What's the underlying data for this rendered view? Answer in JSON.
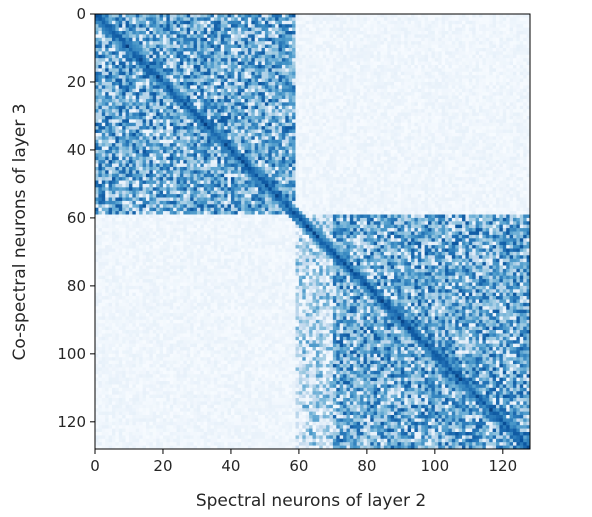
{
  "chart_data": {
    "type": "heatmap",
    "xlabel": "Spectral neurons of layer 2",
    "ylabel": "Co-spectral neurons of layer 3",
    "xlim": [
      0,
      128
    ],
    "ylim": [
      128,
      0
    ],
    "x_ticks": [
      0,
      20,
      40,
      60,
      80,
      100,
      120
    ],
    "y_ticks": [
      0,
      20,
      40,
      60,
      80,
      100,
      120
    ],
    "x_tick_labels": [
      "0",
      "20",
      "40",
      "60",
      "80",
      "100",
      "120"
    ],
    "y_tick_labels": [
      "0",
      "20",
      "40",
      "60",
      "80",
      "100",
      "120"
    ],
    "grid_size": 128,
    "colormap": "Blues",
    "color_low": "#f7fbff",
    "color_high": "#08306b",
    "blocks": [
      {
        "x_range": [
          0,
          59
        ],
        "y_range": [
          0,
          59
        ],
        "mean_intensity": 0.55
      },
      {
        "x_range": [
          59,
          70
        ],
        "y_range": [
          59,
          128
        ],
        "mean_intensity": 0.3
      },
      {
        "x_range": [
          70,
          128
        ],
        "y_range": [
          59,
          128
        ],
        "mean_intensity": 0.55
      }
    ],
    "background_intensity": 0.04,
    "diagonal_intensity": 0.85,
    "grid": false,
    "colorbar": false
  }
}
